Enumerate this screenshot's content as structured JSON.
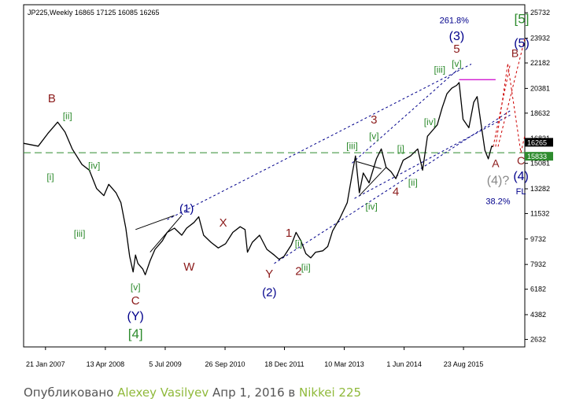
{
  "chart_data": {
    "type": "line",
    "title": "JP225,Weekly  16865 17125 16085 16265",
    "y_ticks": [
      25732,
      23932,
      22182,
      20381,
      18632,
      16831,
      15081,
      13282,
      11532,
      9732,
      7932,
      6182,
      4382,
      2632
    ],
    "ylim": [
      2100,
      26300
    ],
    "x_tick_labels": [
      "21 Jan 2007",
      "13 Apr 2008",
      "5 Jul 2009",
      "26 Sep 2010",
      "18 Dec 2011",
      "10 Mar 2013",
      "1 Jun 2014",
      "23 Aug 2015"
    ],
    "x_ticks": [
      2007.05,
      2008.28,
      2009.51,
      2010.74,
      2011.96,
      2013.19,
      2014.42,
      2015.64
    ],
    "xlim": [
      2006.6,
      2016.9
    ],
    "price_labels": [
      {
        "text": "16265",
        "value": 16265,
        "color": "#000000"
      },
      {
        "text": "15833",
        "value": 15833,
        "color": "#2e8b2e"
      }
    ],
    "series": [
      {
        "values": [
          [
            2006.6,
            16500
          ],
          [
            2006.9,
            16300
          ],
          [
            2007.1,
            17200
          ],
          [
            2007.3,
            18000
          ],
          [
            2007.45,
            17300
          ],
          [
            2007.6,
            16100
          ],
          [
            2007.8,
            15000
          ],
          [
            2007.95,
            14600
          ],
          [
            2008.1,
            13300
          ],
          [
            2008.25,
            12800
          ],
          [
            2008.35,
            13600
          ],
          [
            2008.5,
            13000
          ],
          [
            2008.6,
            12300
          ],
          [
            2008.7,
            10500
          ],
          [
            2008.78,
            8500
          ],
          [
            2008.85,
            7400
          ],
          [
            2008.9,
            8600
          ],
          [
            2008.95,
            8000
          ],
          [
            2009.05,
            7600
          ],
          [
            2009.1,
            7200
          ],
          [
            2009.2,
            8200
          ],
          [
            2009.3,
            9000
          ],
          [
            2009.45,
            9600
          ],
          [
            2009.55,
            10200
          ],
          [
            2009.7,
            10500
          ],
          [
            2009.85,
            10000
          ],
          [
            2009.95,
            10500
          ],
          [
            2010.1,
            10900
          ],
          [
            2010.2,
            11300
          ],
          [
            2010.3,
            10000
          ],
          [
            2010.45,
            9500
          ],
          [
            2010.6,
            9100
          ],
          [
            2010.75,
            9400
          ],
          [
            2010.9,
            10200
          ],
          [
            2011.05,
            10600
          ],
          [
            2011.15,
            10400
          ],
          [
            2011.2,
            8800
          ],
          [
            2011.3,
            9500
          ],
          [
            2011.45,
            10000
          ],
          [
            2011.6,
            9000
          ],
          [
            2011.75,
            8600
          ],
          [
            2011.85,
            8300
          ],
          [
            2011.95,
            8500
          ],
          [
            2012.1,
            9300
          ],
          [
            2012.2,
            10200
          ],
          [
            2012.3,
            9600
          ],
          [
            2012.4,
            8700
          ],
          [
            2012.5,
            8400
          ],
          [
            2012.6,
            8800
          ],
          [
            2012.75,
            8900
          ],
          [
            2012.85,
            9200
          ],
          [
            2012.95,
            10300
          ],
          [
            2013.1,
            11200
          ],
          [
            2013.25,
            12300
          ],
          [
            2013.35,
            14300
          ],
          [
            2013.42,
            15600
          ],
          [
            2013.5,
            13000
          ],
          [
            2013.58,
            14400
          ],
          [
            2013.7,
            13700
          ],
          [
            2013.85,
            15400
          ],
          [
            2013.95,
            16100
          ],
          [
            2014.05,
            14800
          ],
          [
            2014.15,
            14500
          ],
          [
            2014.25,
            14000
          ],
          [
            2014.4,
            15300
          ],
          [
            2014.55,
            15600
          ],
          [
            2014.7,
            16100
          ],
          [
            2014.8,
            14600
          ],
          [
            2014.9,
            17000
          ],
          [
            2015.0,
            17400
          ],
          [
            2015.1,
            17800
          ],
          [
            2015.2,
            19000
          ],
          [
            2015.3,
            20000
          ],
          [
            2015.4,
            20400
          ],
          [
            2015.5,
            20600
          ],
          [
            2015.55,
            20800
          ],
          [
            2015.63,
            18200
          ],
          [
            2015.75,
            17600
          ],
          [
            2015.85,
            19400
          ],
          [
            2015.92,
            19800
          ],
          [
            2016.0,
            17900
          ],
          [
            2016.08,
            16000
          ],
          [
            2016.15,
            15400
          ],
          [
            2016.22,
            16300
          ],
          [
            2016.25,
            16265
          ]
        ]
      }
    ],
    "channel_lines": [
      {
        "color": "#00008b",
        "points": [
          [
            2009.55,
            11100
          ],
          [
            2015.8,
            22100
          ]
        ]
      },
      {
        "color": "#00008b",
        "points": [
          [
            2011.75,
            8000
          ],
          [
            2016.6,
            18800
          ]
        ]
      },
      {
        "color": "#00008b",
        "points": [
          [
            2013.35,
            15100
          ],
          [
            2015.55,
            21800
          ]
        ]
      },
      {
        "color": "#00008b",
        "points": [
          [
            2013.4,
            12600
          ],
          [
            2016.6,
            18500
          ]
        ]
      }
    ],
    "triangle_lines": [
      {
        "points": [
          [
            2008.9,
            10400
          ],
          [
            2009.7,
            11400
          ]
        ]
      },
      {
        "points": [
          [
            2009.2,
            8800
          ],
          [
            2009.85,
            11400
          ]
        ]
      },
      {
        "points": [
          [
            2013.45,
            15200
          ],
          [
            2013.95,
            14700
          ]
        ]
      },
      {
        "points": [
          [
            2013.5,
            12800
          ],
          [
            2014.05,
            14800
          ]
        ]
      }
    ],
    "green_dashed_value": 15833,
    "magenta_segment": {
      "points": [
        [
          2015.55,
          21000
        ],
        [
          2016.3,
          21000
        ]
      ]
    },
    "projection_lines": [
      {
        "color": "#cc0000",
        "points": [
          [
            2016.25,
            16265
          ],
          [
            2016.6,
            22100
          ]
        ]
      },
      {
        "color": "#cc0000",
        "points": [
          [
            2016.3,
            16265
          ],
          [
            2016.55,
            22100
          ]
        ]
      },
      {
        "color": "#cc0000",
        "points": [
          [
            2016.55,
            22100
          ],
          [
            2016.82,
            15833
          ]
        ]
      },
      {
        "color": "#cc0000",
        "points": [
          [
            2016.82,
            15833
          ],
          [
            2017.4,
            24600
          ]
        ]
      },
      {
        "color": "#cc0000",
        "points": [
          [
            2016.35,
            16265
          ],
          [
            2016.95,
            24600
          ]
        ]
      }
    ],
    "annotations": [
      {
        "text": "B",
        "x": 2007.18,
        "y": 19400,
        "color": "#8b1a1a",
        "size": 15
      },
      {
        "text": "[ii]",
        "x": 2007.5,
        "y": 18200,
        "color": "#2e8b2e",
        "size": 12
      },
      {
        "text": "[i]",
        "x": 2007.15,
        "y": 13900,
        "color": "#2e8b2e",
        "size": 12
      },
      {
        "text": "[iv]",
        "x": 2008.05,
        "y": 14700,
        "color": "#2e8b2e",
        "size": 12
      },
      {
        "text": "[iii]",
        "x": 2007.75,
        "y": 9900,
        "color": "#2e8b2e",
        "size": 12
      },
      {
        "text": "[v]",
        "x": 2008.9,
        "y": 6100,
        "color": "#2e8b2e",
        "size": 12
      },
      {
        "text": "C",
        "x": 2008.9,
        "y": 5100,
        "color": "#8b1a1a",
        "size": 15
      },
      {
        "text": "(Y)",
        "x": 2008.9,
        "y": 4000,
        "color": "#00008b",
        "size": 16
      },
      {
        "text": "[4]",
        "x": 2008.9,
        "y": 2700,
        "color": "#2e8b2e",
        "size": 17
      },
      {
        "text": "(1)",
        "x": 2009.95,
        "y": 11600,
        "color": "#00008b",
        "size": 15
      },
      {
        "text": "X",
        "x": 2010.7,
        "y": 10600,
        "color": "#8b1a1a",
        "size": 15
      },
      {
        "text": "W",
        "x": 2010.0,
        "y": 7500,
        "color": "#8b1a1a",
        "size": 15
      },
      {
        "text": "1",
        "x": 2012.05,
        "y": 9900,
        "color": "#8b1a1a",
        "size": 15
      },
      {
        "text": "[i]",
        "x": 2012.25,
        "y": 9200,
        "color": "#2e8b2e",
        "size": 12
      },
      {
        "text": "[ii]",
        "x": 2012.4,
        "y": 7500,
        "color": "#2e8b2e",
        "size": 12
      },
      {
        "text": "2",
        "x": 2012.25,
        "y": 7200,
        "color": "#8b1a1a",
        "size": 15
      },
      {
        "text": "Y",
        "x": 2011.65,
        "y": 7000,
        "color": "#8b1a1a",
        "size": 15
      },
      {
        "text": "(2)",
        "x": 2011.65,
        "y": 5700,
        "color": "#00008b",
        "size": 15
      },
      {
        "text": "[iii]",
        "x": 2013.35,
        "y": 16100,
        "color": "#2e8b2e",
        "size": 12
      },
      {
        "text": "3",
        "x": 2013.8,
        "y": 17900,
        "color": "#8b1a1a",
        "size": 15
      },
      {
        "text": "[v]",
        "x": 2013.8,
        "y": 16800,
        "color": "#2e8b2e",
        "size": 12
      },
      {
        "text": "[iv]",
        "x": 2013.75,
        "y": 11800,
        "color": "#2e8b2e",
        "size": 12
      },
      {
        "text": "[i]",
        "x": 2014.35,
        "y": 15900,
        "color": "#2e8b2e",
        "size": 12
      },
      {
        "text": "4",
        "x": 2014.25,
        "y": 12800,
        "color": "#8b1a1a",
        "size": 15
      },
      {
        "text": "[ii]",
        "x": 2014.6,
        "y": 13500,
        "color": "#2e8b2e",
        "size": 12
      },
      {
        "text": "[iv]",
        "x": 2014.95,
        "y": 17800,
        "color": "#2e8b2e",
        "size": 12
      },
      {
        "text": "[iii]",
        "x": 2015.15,
        "y": 21500,
        "color": "#2e8b2e",
        "size": 12
      },
      {
        "text": "[v]",
        "x": 2015.5,
        "y": 21900,
        "color": "#2e8b2e",
        "size": 12
      },
      {
        "text": "5",
        "x": 2015.5,
        "y": 22900,
        "color": "#8b1a1a",
        "size": 15
      },
      {
        "text": "(3)",
        "x": 2015.5,
        "y": 23800,
        "color": "#00008b",
        "size": 16
      },
      {
        "text": "261.8%",
        "x": 2015.45,
        "y": 25000,
        "color": "#00008b",
        "size": 11
      },
      {
        "text": "A",
        "x": 2016.3,
        "y": 14800,
        "color": "#8b1a1a",
        "size": 14
      },
      {
        "text": "(4)?",
        "x": 2016.35,
        "y": 13600,
        "color": "#888888",
        "size": 16
      },
      {
        "text": "38.2%",
        "x": 2016.35,
        "y": 12200,
        "color": "#00008b",
        "size": 11
      },
      {
        "text": "B",
        "x": 2016.7,
        "y": 22600,
        "color": "#8b1a1a",
        "size": 14
      },
      {
        "text": "C",
        "x": 2016.82,
        "y": 15000,
        "color": "#8b1a1a",
        "size": 14
      },
      {
        "text": "(4)",
        "x": 2016.82,
        "y": 13900,
        "color": "#00008b",
        "size": 16
      },
      {
        "text": "FL",
        "x": 2016.82,
        "y": 12900,
        "color": "#00008b",
        "size": 11
      },
      {
        "text": "(5)",
        "x": 2017.4,
        "y": 23300,
        "color": "#00008b",
        "size": 16
      },
      {
        "text": "[5]",
        "x": 2017.4,
        "y": 25000,
        "color": "#2e8b2e",
        "size": 17
      }
    ]
  },
  "footer": {
    "prefix": "Опубликовано",
    "author": "Alexey Vasilyev",
    "date": "Апр 1, 2016 в",
    "instrument": "Nikkei 225"
  }
}
